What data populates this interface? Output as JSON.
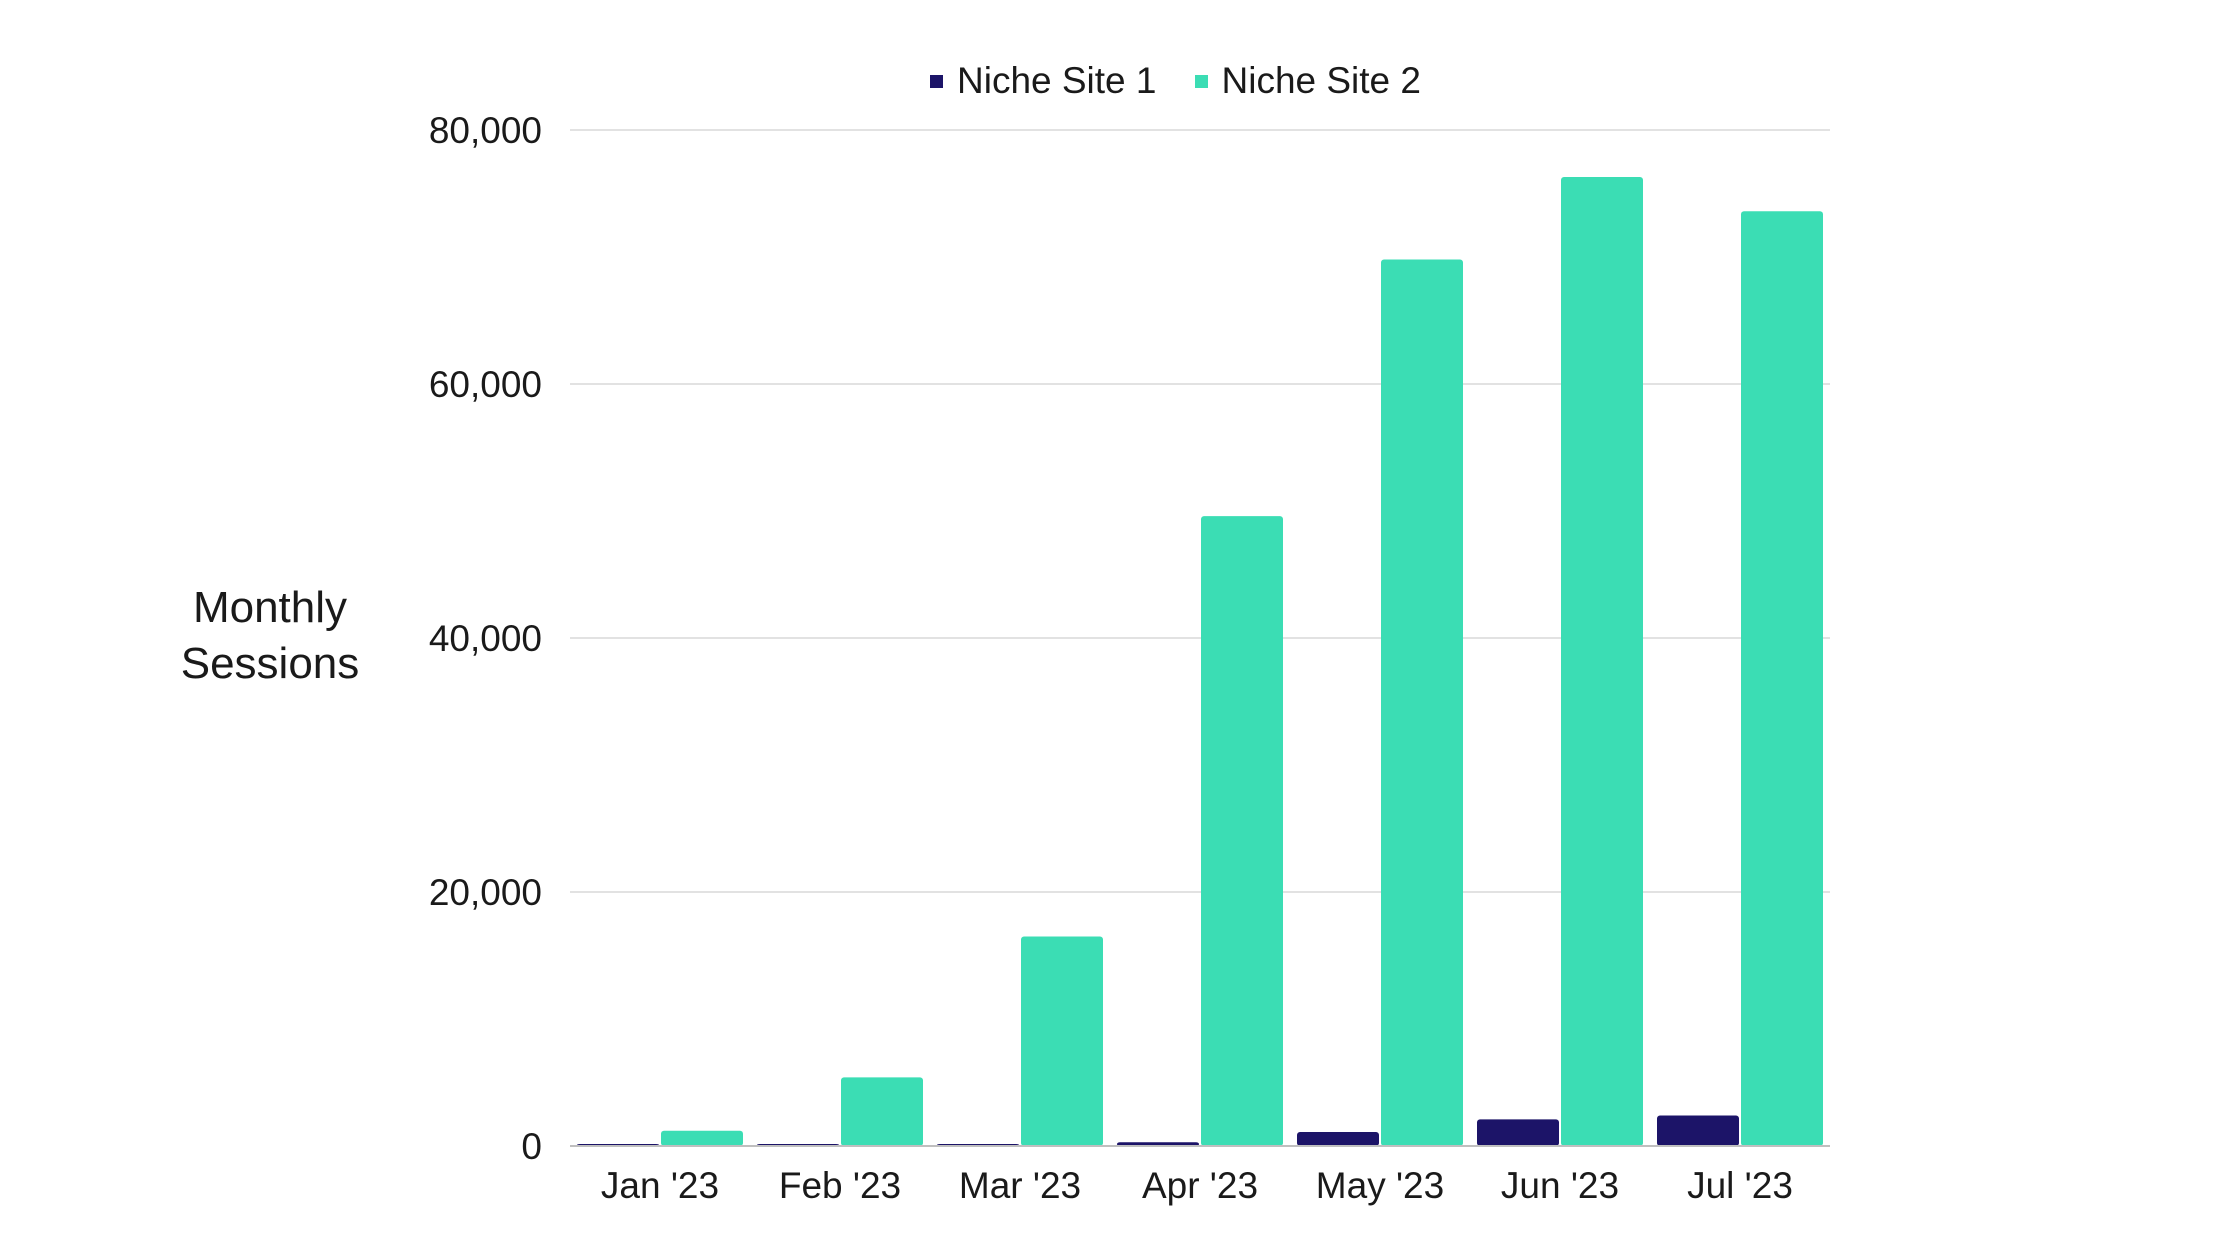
{
  "chart_data": {
    "type": "bar",
    "title": "",
    "xlabel": "",
    "ylabel": "Monthly Sessions",
    "categories": [
      "Jan '23",
      "Feb '23",
      "Mar '23",
      "Apr '23",
      "May '23",
      "Jun '23",
      "Jul '23"
    ],
    "series": [
      {
        "name": "Niche Site 1",
        "color": "#1c1468",
        "values": [
          60,
          40,
          80,
          300,
          1100,
          2100,
          2400
        ]
      },
      {
        "name": "Niche Site 2",
        "color": "#3bddb4",
        "values": [
          1200,
          5400,
          16500,
          49600,
          69800,
          76300,
          73600
        ]
      }
    ],
    "ylim": [
      0,
      80000
    ],
    "yticks": [
      0,
      20000,
      40000,
      60000,
      80000
    ],
    "ytick_labels": [
      "0",
      "20,000",
      "40,000",
      "60,000",
      "80,000"
    ],
    "grid": true,
    "legend_position": "top-center"
  }
}
